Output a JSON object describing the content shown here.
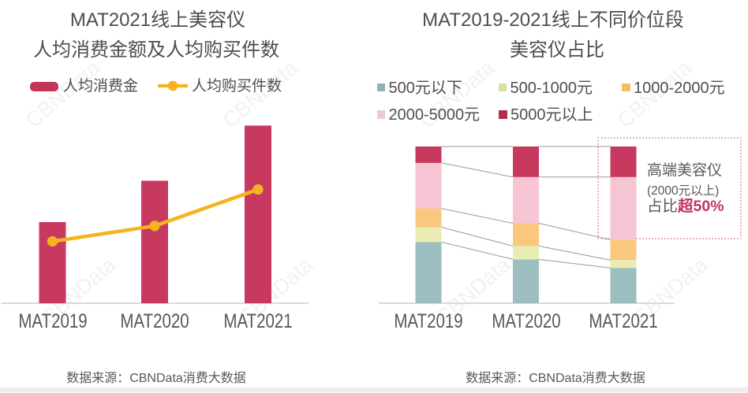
{
  "page": {
    "background": "#ffffff",
    "watermark": {
      "text": "CBNData"
    }
  },
  "left_chart": {
    "title_line1": "MAT2021线上美容仪",
    "title_line2": "人均消费金额及人均购买件数",
    "legend_bar_label": "人均消费金",
    "legend_line_label": "人均购买件数",
    "source_note": "数据来源：CBNData消费大数据"
  },
  "right_chart": {
    "title_line1": "MAT2019-2021线上不同价位段",
    "title_line2": "美容仪占比",
    "annotation_line1": "高端美容仪",
    "annotation_line2": "(2000元以上)",
    "annotation_line3_prefix": "占比",
    "annotation_line3_highlight": "超50%",
    "source_note": "数据来源：CBNData消费大数据"
  },
  "colors": {
    "bar_crimson": "#c8395f",
    "line_yellow": "#f5b41f",
    "segment_teal": "#9cbec0",
    "segment_yellowgreen": "#e9edb3",
    "segment_orange": "#fac87d",
    "segment_pink": "#f5c5d3",
    "segment_crimson": "#c8395f",
    "legend_teal": "#8fb3b5",
    "legend_yellowgreen": "#d6e0a0",
    "legend_orange": "#efc066",
    "legend_pink": "#f0c8d4",
    "legend_crimson": "#b52b4e",
    "legend_bar_swatch": "#c33458",
    "accent_crimson": "#c2335c",
    "axis_line": "#d9d9d9",
    "connector": "#999999",
    "annotation_box_border": "#e7afc0",
    "text_dark": "#4d4d4d",
    "text_gray": "#595757",
    "watermark_gray": "#cdcdcd"
  },
  "chart_data": [
    {
      "type": "bar",
      "title": "MAT2021线上美容仪 人均消费金额及人均购买件数",
      "categories": [
        "MAT2019",
        "MAT2020",
        "MAT2021"
      ],
      "series": [
        {
          "name": "人均消费金",
          "type": "bar",
          "values": [
            100,
            151,
            219
          ]
        },
        {
          "name": "人均购买件数",
          "type": "line",
          "values": [
            100,
            125,
            184
          ]
        }
      ],
      "values_are_relative": true,
      "note": "no numeric axis shown in source; values indexed to MAT2019 = 100",
      "legend_position": "top",
      "grid": false
    },
    {
      "type": "bar",
      "stacked": true,
      "title": "MAT2019-2021线上不同价位段 美容仪占比",
      "categories": [
        "MAT2019",
        "MAT2020",
        "MAT2021"
      ],
      "unit": "%",
      "ylim": [
        0,
        100
      ],
      "series": [
        {
          "name": "500元以下",
          "values": [
            39,
            28,
            22.5
          ]
        },
        {
          "name": "500-1000元",
          "values": [
            9.5,
            8.5,
            5
          ]
        },
        {
          "name": "1000-2000元",
          "values": [
            12,
            14.5,
            13
          ]
        },
        {
          "name": "2000-5000元",
          "values": [
            29,
            29.5,
            40
          ]
        },
        {
          "name": "5000元以上",
          "values": [
            10.5,
            19.5,
            19.5
          ]
        }
      ],
      "annotation": "高端美容仪(2000元以上)占比超50%",
      "legend_position": "top",
      "grid": false
    }
  ]
}
